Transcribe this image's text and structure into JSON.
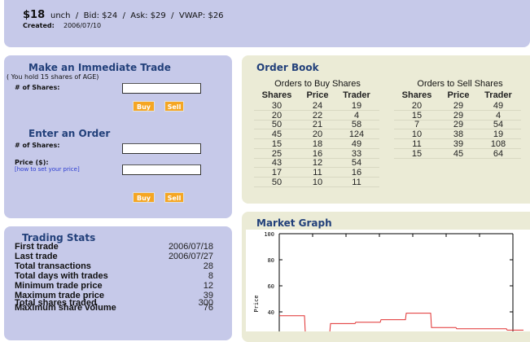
{
  "header": {
    "price": "$18",
    "info": "unch  /  Bid: $24  /  Ask: $29  /  VWAP: $26",
    "created_label": "Created:",
    "created": "2006/07/10"
  },
  "immediate_trade": {
    "title": "Make an Immediate Trade",
    "holding": "( You hold 15 shares of AGE)",
    "shares_label": "# of Shares:",
    "buy": "Buy",
    "sell": "Sell"
  },
  "order_entry": {
    "title": "Enter an Order",
    "shares_label": "# of Shares:",
    "price_label": "Price ($):",
    "price_help": "[how to set your price]",
    "buy": "Buy",
    "sell": "Sell"
  },
  "trading_stats": {
    "title": "Trading Stats",
    "rows": [
      [
        "First trade",
        "2006/07/18"
      ],
      [
        "Last trade",
        "2006/07/27"
      ],
      [
        "Total transactions",
        28
      ],
      [
        "Total days with trades",
        8
      ],
      [
        "Minimum trade price",
        12
      ],
      [
        "Maximum trade price",
        39
      ],
      [
        "Total shares traded",
        300
      ],
      [
        "Maximum share volume",
        76
      ]
    ]
  },
  "order_book": {
    "title": "Order Book",
    "buy": {
      "title": "Orders to Buy Shares",
      "columns": [
        "Shares",
        "Price",
        "Trader"
      ],
      "rows": [
        [
          30,
          24,
          19
        ],
        [
          20,
          22,
          4
        ],
        [
          50,
          21,
          58
        ],
        [
          45,
          20,
          124
        ],
        [
          15,
          18,
          49
        ],
        [
          25,
          16,
          33
        ],
        [
          43,
          12,
          54
        ],
        [
          17,
          11,
          16
        ],
        [
          50,
          10,
          11
        ]
      ]
    },
    "sell": {
      "title": "Orders to Sell Shares",
      "columns": [
        "Shares",
        "Price",
        "Trader"
      ],
      "rows": [
        [
          20,
          29,
          49
        ],
        [
          15,
          29,
          4
        ],
        [
          7,
          29,
          54
        ],
        [
          10,
          38,
          19
        ],
        [
          11,
          39,
          108
        ],
        [
          15,
          45,
          64
        ]
      ]
    }
  },
  "market_graph": {
    "title": "Market Graph",
    "chart_data": {
      "type": "line",
      "ylabel": "Price",
      "values": [
        37,
        24,
        31,
        32,
        34,
        39,
        28,
        27,
        27,
        26
      ],
      "color": "#e03030",
      "ylim": [
        20,
        100
      ],
      "yticks": [
        40,
        60,
        80,
        100
      ]
    }
  }
}
